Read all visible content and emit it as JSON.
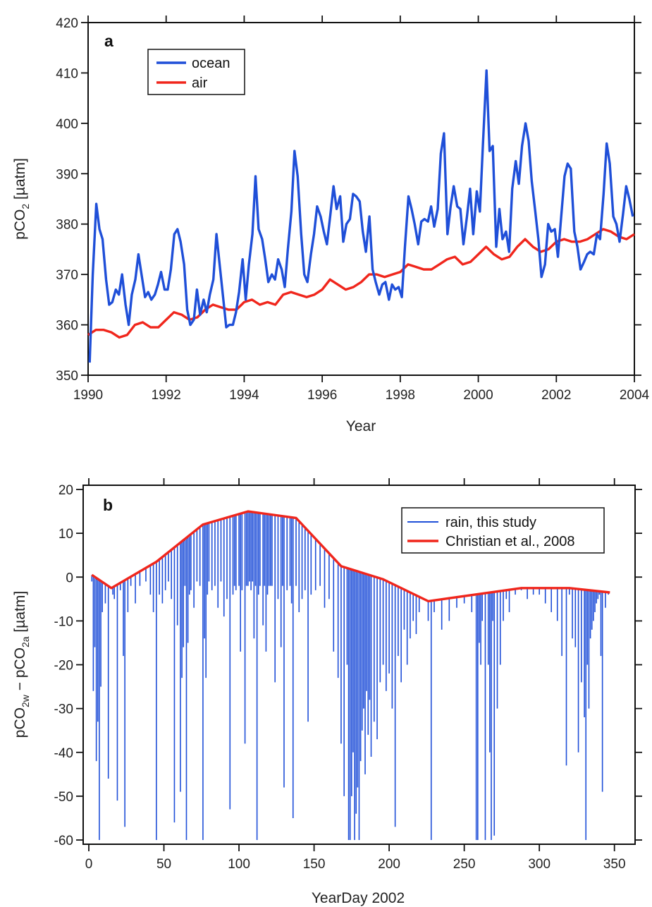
{
  "colors": {
    "ocean": "#1f4fd8",
    "air": "#f0261c",
    "rain": "#1f4fd8",
    "christian": "#f0261c",
    "frame": "#111111"
  },
  "chart_data": [
    {
      "type": "line",
      "panel": "a",
      "xlabel": "Year",
      "ylabel_main": "pCO",
      "ylabel_sub": "2",
      "ylabel_unit": " [µatm]",
      "xlim": [
        1990,
        2004
      ],
      "ylim": [
        350,
        420
      ],
      "xticks": [
        1990,
        1992,
        1994,
        1996,
        1998,
        2000,
        2002,
        2004
      ],
      "yticks": [
        350,
        360,
        370,
        380,
        390,
        400,
        410,
        420
      ],
      "legend_position": "top-left",
      "grid": false,
      "series": [
        {
          "name": "ocean",
          "x": [
            1990.04,
            1990.12,
            1990.21,
            1990.29,
            1990.37,
            1990.46,
            1990.54,
            1990.62,
            1990.71,
            1990.79,
            1990.87,
            1990.96,
            1991.04,
            1991.12,
            1991.21,
            1991.29,
            1991.37,
            1991.46,
            1991.54,
            1991.62,
            1991.71,
            1991.79,
            1991.87,
            1991.96,
            1992.04,
            1992.12,
            1992.21,
            1992.29,
            1992.37,
            1992.46,
            1992.54,
            1992.62,
            1992.71,
            1992.79,
            1992.87,
            1992.96,
            1993.04,
            1993.12,
            1993.21,
            1993.29,
            1993.37,
            1993.46,
            1993.54,
            1993.62,
            1993.71,
            1993.79,
            1993.87,
            1993.96,
            1994.04,
            1994.12,
            1994.21,
            1994.29,
            1994.37,
            1994.46,
            1994.54,
            1994.62,
            1994.71,
            1994.79,
            1994.87,
            1994.96,
            1995.04,
            1995.12,
            1995.21,
            1995.29,
            1995.37,
            1995.46,
            1995.54,
            1995.62,
            1995.71,
            1995.79,
            1995.87,
            1995.96,
            1996.04,
            1996.12,
            1996.21,
            1996.29,
            1996.37,
            1996.46,
            1996.54,
            1996.62,
            1996.71,
            1996.79,
            1996.87,
            1996.96,
            1997.04,
            1997.12,
            1997.21,
            1997.29,
            1997.37,
            1997.46,
            1997.54,
            1997.62,
            1997.71,
            1997.79,
            1997.87,
            1997.96,
            1998.04,
            1998.12,
            1998.21,
            1998.29,
            1998.37,
            1998.46,
            1998.54,
            1998.62,
            1998.71,
            1998.79,
            1998.87,
            1998.96,
            1999.04,
            1999.12,
            1999.21,
            1999.29,
            1999.37,
            1999.46,
            1999.54,
            1999.62,
            1999.71,
            1999.79,
            1999.87,
            1999.96,
            2000.04,
            2000.12,
            2000.21,
            2000.29,
            2000.37,
            2000.46,
            2000.54,
            2000.62,
            2000.71,
            2000.79,
            2000.87,
            2000.96,
            2001.04,
            2001.12,
            2001.21,
            2001.29,
            2001.37,
            2001.46,
            2001.54,
            2001.62,
            2001.71,
            2001.79,
            2001.87,
            2001.96,
            2002.04,
            2002.12,
            2002.21,
            2002.29,
            2002.37,
            2002.46,
            2002.54,
            2002.62,
            2002.71,
            2002.79,
            2002.87,
            2002.96,
            2003.04,
            2003.12,
            2003.21,
            2003.29,
            2003.37,
            2003.46,
            2003.54,
            2003.62,
            2003.71,
            2003.79,
            2003.87,
            2003.96
          ],
          "values": [
            352.5,
            370.0,
            384.0,
            379.0,
            377.0,
            369.0,
            364.0,
            364.5,
            367.0,
            366.0,
            370.0,
            364.0,
            360.0,
            366.0,
            369.0,
            374.0,
            370.0,
            365.5,
            366.5,
            365.0,
            366.0,
            368.0,
            370.5,
            367.0,
            367.0,
            371.0,
            378.0,
            379.0,
            376.5,
            372.0,
            363.0,
            360.0,
            361.0,
            367.0,
            362.0,
            365.0,
            362.5,
            366.0,
            369.0,
            378.0,
            372.0,
            365.5,
            359.5,
            360.0,
            360.0,
            362.5,
            366.5,
            373.0,
            365.0,
            372.0,
            378.0,
            389.5,
            379.0,
            377.0,
            373.0,
            368.5,
            370.0,
            369.0,
            373.0,
            371.0,
            367.5,
            375.0,
            382.5,
            394.5,
            389.5,
            378.0,
            370.0,
            368.5,
            374.0,
            378.0,
            383.5,
            381.5,
            378.5,
            376.0,
            382.0,
            387.5,
            383.0,
            385.5,
            376.5,
            380.0,
            381.0,
            386.0,
            385.5,
            384.5,
            378.5,
            374.5,
            381.5,
            371.0,
            368.5,
            366.0,
            368.0,
            368.5,
            365.0,
            368.0,
            367.0,
            367.5,
            365.5,
            375.5,
            385.5,
            383.0,
            380.0,
            376.0,
            380.5,
            381.0,
            380.5,
            383.5,
            379.5,
            383.0,
            394.0,
            398.0,
            378.0,
            383.5,
            387.5,
            383.5,
            383.0,
            376.0,
            381.5,
            387.0,
            378.0,
            386.5,
            382.5,
            396.0,
            410.5,
            394.5,
            395.5,
            375.5,
            383.0,
            377.0,
            378.5,
            374.5,
            387.0,
            392.5,
            388.0,
            395.5,
            400.0,
            396.5,
            388.5,
            382.5,
            377.0,
            369.5,
            372.0,
            380.0,
            378.5,
            379.0,
            373.5,
            381.0,
            389.5,
            392.0,
            391.0,
            378.5,
            375.5,
            371.0,
            372.5,
            374.0,
            374.5,
            374.0,
            378.0,
            377.0,
            386.0,
            396.0,
            392.0,
            381.5,
            380.0,
            376.5,
            382.0,
            387.5,
            385.0,
            381.5
          ]
        },
        {
          "name": "air",
          "x": [
            1990.0,
            1990.2,
            1990.4,
            1990.6,
            1990.8,
            1991.0,
            1991.2,
            1991.4,
            1991.6,
            1991.8,
            1992.0,
            1992.2,
            1992.4,
            1992.6,
            1992.8,
            1993.0,
            1993.2,
            1993.4,
            1993.6,
            1993.8,
            1994.0,
            1994.2,
            1994.4,
            1994.6,
            1994.8,
            1995.0,
            1995.2,
            1995.4,
            1995.6,
            1995.8,
            1996.0,
            1996.2,
            1996.4,
            1996.6,
            1996.8,
            1997.0,
            1997.2,
            1997.4,
            1997.6,
            1997.8,
            1998.0,
            1998.2,
            1998.4,
            1998.6,
            1998.8,
            1999.0,
            1999.2,
            1999.4,
            1999.6,
            1999.8,
            2000.0,
            2000.2,
            2000.4,
            2000.6,
            2000.8,
            2001.0,
            2001.2,
            2001.4,
            2001.6,
            2001.8,
            2002.0,
            2002.2,
            2002.4,
            2002.6,
            2002.8,
            2003.0,
            2003.2,
            2003.4,
            2003.6,
            2003.8,
            2004.0
          ],
          "values": [
            358.0,
            359.0,
            359.0,
            358.5,
            357.5,
            358.0,
            360.0,
            360.5,
            359.5,
            359.5,
            361.0,
            362.5,
            362.0,
            361.0,
            361.5,
            363.0,
            364.0,
            363.5,
            363.0,
            363.0,
            364.5,
            365.0,
            364.0,
            364.5,
            364.0,
            366.0,
            366.5,
            366.0,
            365.5,
            366.0,
            367.0,
            369.0,
            368.0,
            367.0,
            367.5,
            368.5,
            370.0,
            370.0,
            369.5,
            370.0,
            370.5,
            372.0,
            371.5,
            371.0,
            371.0,
            372.0,
            373.0,
            373.5,
            372.0,
            372.5,
            374.0,
            375.5,
            374.0,
            373.0,
            373.5,
            375.5,
            377.0,
            375.5,
            374.5,
            375.0,
            376.5,
            377.0,
            376.5,
            376.5,
            377.0,
            378.0,
            379.0,
            378.5,
            377.5,
            377.0,
            378.0
          ]
        }
      ]
    },
    {
      "type": "bar",
      "panel": "b",
      "xlabel": "YearDay 2002",
      "ylabel": "pCO2w − pCO2a [µatm]",
      "ylabel_parts": [
        "pCO",
        "2w",
        " − pCO",
        "2a",
        " [µatm]"
      ],
      "xlim": [
        0,
        360
      ],
      "ylim": [
        -60,
        20
      ],
      "xticks": [
        0,
        50,
        100,
        150,
        200,
        250,
        300,
        350
      ],
      "yticks": [
        -60,
        -50,
        -40,
        -30,
        -20,
        -10,
        0,
        10,
        20
      ],
      "legend_position": "top-right",
      "grid": false,
      "series": [
        {
          "name": "rain, this study",
          "style": "vertical lines hanging from baseline to value",
          "x": [
            2,
            3,
            4,
            5,
            6,
            7,
            8,
            9,
            11,
            13,
            16,
            17,
            19,
            21,
            23,
            24,
            26,
            28,
            31,
            34,
            38,
            41,
            43,
            45,
            47,
            49,
            51,
            53,
            55,
            57,
            59,
            61,
            62,
            63,
            64,
            65,
            66,
            67,
            68,
            70,
            72,
            74,
            76,
            77,
            78,
            79,
            80,
            82,
            84,
            86,
            88,
            90,
            92,
            94,
            96,
            97,
            98,
            100,
            101,
            102,
            104,
            105,
            106,
            107,
            108,
            109,
            110,
            111,
            112,
            113,
            114,
            116,
            117,
            118,
            119,
            120,
            121,
            122,
            124,
            126,
            128,
            129,
            130,
            132,
            134,
            135,
            136,
            138,
            140,
            142,
            144,
            146,
            148,
            151,
            154,
            157,
            160,
            163,
            166,
            168,
            170,
            172,
            173,
            174,
            175,
            176,
            177,
            178,
            179,
            180,
            181,
            182,
            183,
            184,
            185,
            186,
            187,
            188,
            190,
            192,
            194,
            196,
            198,
            200,
            202,
            204,
            206,
            208,
            210,
            212,
            214,
            216,
            218,
            220,
            222,
            224,
            226,
            228,
            230,
            235,
            240,
            245,
            250,
            255,
            258,
            259,
            260,
            261,
            262,
            264,
            266,
            267,
            268,
            269,
            270,
            272,
            274,
            276,
            278,
            280,
            284,
            288,
            292,
            296,
            300,
            304,
            308,
            312,
            315,
            318,
            320,
            322,
            324,
            326,
            328,
            330,
            331,
            332,
            333,
            334,
            335,
            336,
            337,
            338,
            339,
            340,
            341,
            342,
            344,
            346
          ],
          "values": [
            -1,
            -26,
            -16,
            -42,
            -33,
            -60,
            -25,
            -8,
            -6,
            -46,
            -4,
            -5,
            -51,
            -3,
            -18,
            -57,
            -8,
            -2,
            -6,
            -2,
            -1,
            -4,
            -8,
            -60,
            -4,
            -6,
            -3,
            -1,
            -5,
            -56,
            -11,
            -49,
            -23,
            -16,
            -2,
            -60,
            -15,
            -4,
            -3,
            -7,
            -1,
            -2,
            -60,
            -14,
            -23,
            -4,
            -1,
            -3,
            -2,
            -7,
            -1,
            -9,
            -5,
            -53,
            -4,
            -2,
            -3,
            -2,
            -17,
            -3,
            -38,
            -2,
            -2,
            -1,
            -3,
            -1,
            -14,
            -2,
            -60,
            -4,
            -2,
            -11,
            -2,
            -17,
            -4,
            -2,
            -2,
            -2,
            -24,
            -5,
            -16,
            -2,
            -48,
            -3,
            -2,
            -6,
            -55,
            -2,
            -8,
            -5,
            -3,
            -33,
            -4,
            -3,
            -2,
            -7,
            -5,
            -17,
            -23,
            -38,
            -50,
            -20,
            -60,
            -60,
            -50,
            -40,
            -60,
            -54,
            -48,
            -60,
            -42,
            -35,
            -30,
            -45,
            -26,
            -36,
            -28,
            -41,
            -33,
            -37,
            -24,
            -20,
            -26,
            -22,
            -30,
            -57,
            -18,
            -24,
            -12,
            -20,
            -14,
            -10,
            -13,
            -8,
            -5,
            -5,
            -10,
            -60,
            -8,
            -12,
            -10,
            -7,
            -6,
            -8,
            -60,
            -60,
            -15,
            -20,
            -10,
            -60,
            -20,
            -40,
            -60,
            -10,
            -59,
            -30,
            -20,
            -10,
            -5,
            -8,
            -4,
            -3,
            -5,
            -4,
            -4,
            -6,
            -8,
            -10,
            -18,
            -43,
            -4,
            -14,
            -16,
            -40,
            -24,
            -32,
            -60,
            -20,
            -30,
            -14,
            -12,
            -10,
            -8,
            -6,
            -5,
            -4,
            -18,
            -49,
            -7,
            -4
          ]
        },
        {
          "name": "Christian et al., 2008",
          "x": [
            2,
            15,
            45,
            76,
            106,
            138,
            168,
            196,
            226,
            288,
            320,
            347
          ],
          "values": [
            0.5,
            -2.5,
            3.5,
            12.0,
            15.0,
            13.5,
            2.5,
            -0.5,
            -5.5,
            -2.5,
            -2.5,
            -3.5
          ]
        }
      ]
    }
  ]
}
